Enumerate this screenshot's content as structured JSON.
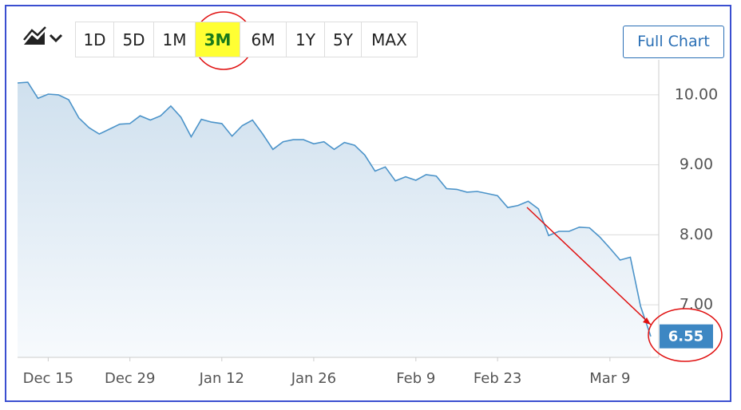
{
  "toolbar": {
    "ranges": [
      "1D",
      "5D",
      "1M",
      "3M",
      "6M",
      "1Y",
      "5Y",
      "MAX"
    ],
    "selected_range": "3M",
    "full_chart": "Full Chart"
  },
  "chart_data": {
    "type": "area",
    "categories": [
      null,
      null,
      null,
      "Dec 15",
      null,
      null,
      null,
      null,
      null,
      null,
      null,
      "Dec 29",
      null,
      null,
      null,
      null,
      null,
      null,
      null,
      null,
      "Jan 12",
      null,
      null,
      null,
      null,
      null,
      null,
      null,
      null,
      "Jan 26",
      null,
      null,
      null,
      null,
      null,
      null,
      null,
      null,
      null,
      "Feb 9",
      null,
      null,
      null,
      null,
      null,
      null,
      null,
      "Feb 23",
      null,
      null,
      null,
      null,
      null,
      null,
      null,
      null,
      null,
      null,
      "Mar 9",
      null,
      null,
      null,
      null
    ],
    "values": [
      10.17,
      10.18,
      9.95,
      10.01,
      10.0,
      9.93,
      9.67,
      9.53,
      9.44,
      9.51,
      9.58,
      9.59,
      9.7,
      9.64,
      9.7,
      9.84,
      9.68,
      9.4,
      9.65,
      9.61,
      9.59,
      9.41,
      9.56,
      9.64,
      9.44,
      9.22,
      9.33,
      9.36,
      9.36,
      9.3,
      9.33,
      9.22,
      9.32,
      9.28,
      9.14,
      8.91,
      8.97,
      8.77,
      8.83,
      8.78,
      8.86,
      8.84,
      8.66,
      8.65,
      8.61,
      8.62,
      8.59,
      8.56,
      8.39,
      8.42,
      8.48,
      8.37,
      7.99,
      8.05,
      8.05,
      8.11,
      8.1,
      7.97,
      7.81,
      7.64,
      7.68,
      6.98,
      6.55
    ],
    "color": "#4b93c9",
    "ylim": [
      6.25,
      10.5
    ],
    "yticks": [
      {
        "value": 7,
        "label": "7.00"
      },
      {
        "value": 8,
        "label": "8.00"
      },
      {
        "value": 9,
        "label": "9.00"
      },
      {
        "value": 10,
        "label": "10.00"
      }
    ],
    "grid": true
  }
}
